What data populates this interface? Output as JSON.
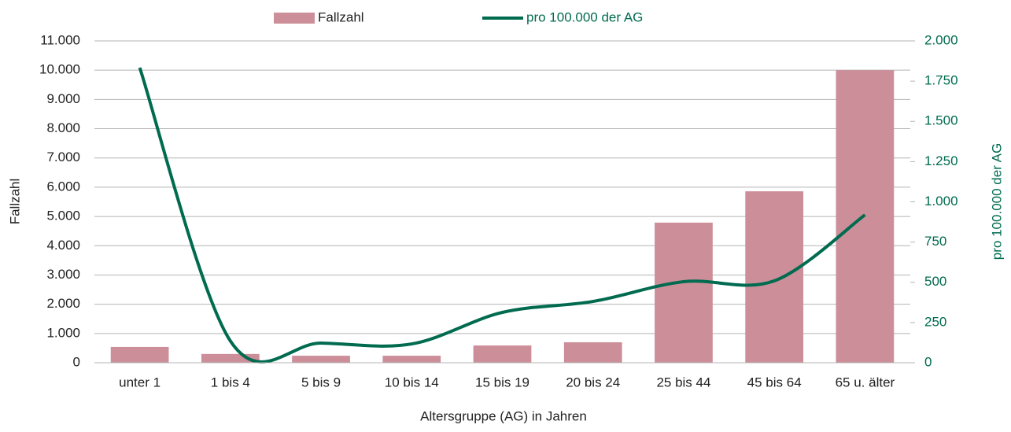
{
  "chart_data": {
    "type": "bar-line",
    "categories": [
      "unter 1",
      "1 bis 4",
      "5 bis 9",
      "10 bis 14",
      "15 bis 19",
      "20 bis 24",
      "25 bis 44",
      "45 bis 64",
      "65 u. älter"
    ],
    "series": [
      {
        "name": "Fallzahl",
        "type": "bar",
        "color": "#cc8e99",
        "values": [
          540,
          300,
          240,
          240,
          590,
          700,
          4790,
          5860,
          10000
        ]
      },
      {
        "name": "pro 100.000 der AG",
        "type": "line",
        "axis": "y2",
        "smooth": true,
        "color": "#006b4f",
        "values": [
          1834,
          135,
          122,
          117,
          313,
          381,
          504,
          509,
          919
        ]
      }
    ],
    "xlabel": "Altersgruppe (AG) in Jahren",
    "ylabel": "Fallzahl",
    "y2label": "pro 100.000 der AG",
    "ylim": [
      0,
      11000
    ],
    "yticks": [
      0,
      {
        "value": 1000,
        "label": "1.000"
      },
      {
        "value": 2000,
        "label": "2.000"
      },
      {
        "value": 3000,
        "label": "3.000"
      },
      {
        "value": 4000,
        "label": "4.000"
      },
      {
        "value": 5000,
        "label": "5.000"
      },
      {
        "value": 6000,
        "label": "6.000"
      },
      {
        "value": 7000,
        "label": "7.000"
      },
      {
        "value": 8000,
        "label": "8.000"
      },
      {
        "value": 9000,
        "label": "9.000"
      },
      {
        "value": 10000,
        "label": "10.000"
      },
      {
        "value": 11000,
        "label": "11.000"
      }
    ],
    "y2lim": [
      0,
      2000
    ],
    "y2ticks": [
      0,
      250,
      500,
      750,
      {
        "value": 1000,
        "label": "1.000"
      },
      {
        "value": 1250,
        "label": "1.250"
      },
      {
        "value": 1500,
        "label": "1.500"
      },
      {
        "value": 1750,
        "label": "1.750"
      },
      {
        "value": 2000,
        "label": "2.000"
      }
    ],
    "grid": true,
    "legend": "top"
  }
}
